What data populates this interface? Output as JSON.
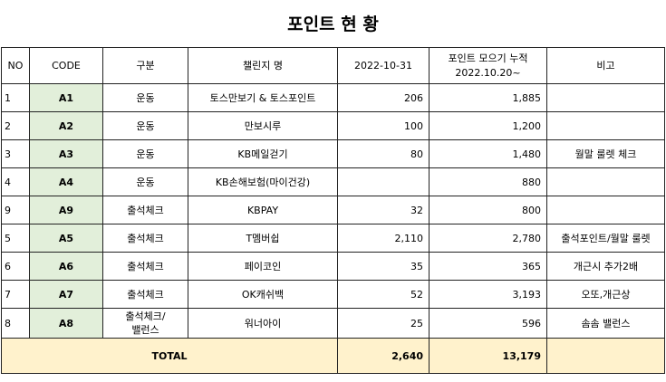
{
  "title": "포인트 현 황",
  "columns": {
    "no": "NO",
    "code": "CODE",
    "category": "구분",
    "challenge": "챌린지 명",
    "date": "2022-10-31",
    "accum_line1": "포인트 모으기 누적",
    "accum_line2": "2022.10.20~",
    "note": "비고"
  },
  "rows": [
    {
      "no": "1",
      "code": "A1",
      "category": "운동",
      "challenge": "토스만보기 & 토스포인트",
      "date_value": "206",
      "accum": "1,885",
      "note": ""
    },
    {
      "no": "2",
      "code": "A2",
      "category": "운동",
      "challenge": "만보시루",
      "date_value": "100",
      "accum": "1,200",
      "note": ""
    },
    {
      "no": "3",
      "code": "A3",
      "category": "운동",
      "challenge": "KB메일걷기",
      "date_value": "80",
      "accum": "1,480",
      "note": "월말 룰렛 체크"
    },
    {
      "no": "4",
      "code": "A4",
      "category": "운동",
      "challenge": "KB손해보험(마이건강)",
      "date_value": "",
      "accum": "880",
      "note": ""
    },
    {
      "no": "9",
      "code": "A9",
      "category": "출석체크",
      "challenge": "KBPAY",
      "date_value": "32",
      "accum": "800",
      "note": ""
    },
    {
      "no": "5",
      "code": "A5",
      "category": "출석체크",
      "challenge": "T멤버쉽",
      "date_value": "2,110",
      "accum": "2,780",
      "note": "출석포인트/월말 룰렛"
    },
    {
      "no": "6",
      "code": "A6",
      "category": "출석체크",
      "challenge": "페이코인",
      "date_value": "35",
      "accum": "365",
      "note": "개근시 추가2배"
    },
    {
      "no": "7",
      "code": "A7",
      "category": "출석체크",
      "challenge": "OK캐쉬백",
      "date_value": "52",
      "accum": "3,193",
      "note": "오또,개근상"
    },
    {
      "no": "8",
      "code": "A8",
      "category": "출석체크/\n밸런스",
      "challenge": "워너아이",
      "date_value": "25",
      "accum": "596",
      "note": "솜솜 밸런스"
    }
  ],
  "total": {
    "label": "TOTAL",
    "date_value": "2,640",
    "accum": "13,179"
  }
}
